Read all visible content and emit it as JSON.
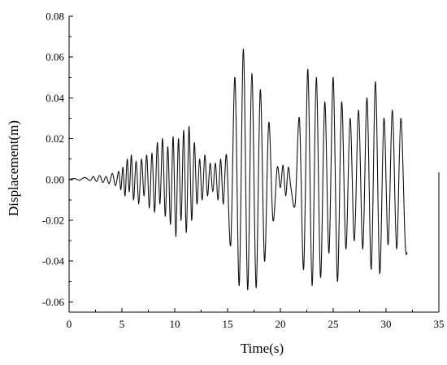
{
  "chart_data": {
    "type": "line",
    "title": "",
    "xlabel": "Time(s)",
    "ylabel": "Displacement(m)",
    "xlim": [
      0,
      35
    ],
    "ylim": [
      -0.065,
      0.08
    ],
    "x_ticks": [
      0,
      5,
      10,
      15,
      20,
      25,
      30,
      35
    ],
    "x_tick_labels": [
      "0",
      "5",
      "10",
      "15",
      "20",
      "25",
      "30",
      "35"
    ],
    "y_ticks": [
      -0.06,
      -0.04,
      -0.02,
      0.0,
      0.02,
      0.04,
      0.06,
      0.08
    ],
    "y_tick_labels": [
      "-0.06",
      "-0.04",
      "-0.02",
      "0.00",
      "0.02",
      "0.04",
      "0.06",
      "0.08"
    ],
    "grid": false,
    "legend": "none",
    "series": [
      {
        "color": "#111111",
        "x": [
          0,
          0.5,
          1.0,
          1.5,
          2.0,
          2.3,
          2.6,
          2.9,
          3.2,
          3.5,
          3.8,
          4.1,
          4.4,
          4.7,
          4.9,
          5.1,
          5.3,
          5.5,
          5.7,
          5.9,
          6.1,
          6.35,
          6.6,
          6.85,
          7.1,
          7.35,
          7.6,
          7.85,
          8.1,
          8.35,
          8.6,
          8.85,
          9.1,
          9.35,
          9.6,
          9.85,
          10.1,
          10.35,
          10.6,
          10.85,
          11.1,
          11.35,
          11.6,
          11.85,
          12.1,
          12.35,
          12.6,
          12.85,
          13.1,
          13.35,
          13.6,
          13.85,
          14.1,
          14.35,
          14.6,
          14.9,
          15.3,
          15.7,
          16.1,
          16.5,
          16.9,
          17.3,
          17.7,
          18.1,
          18.5,
          18.9,
          19.3,
          19.7,
          20.0,
          20.25,
          20.5,
          20.75,
          21.0,
          21.4,
          21.8,
          22.2,
          22.6,
          23.0,
          23.4,
          23.8,
          24.2,
          24.6,
          25.0,
          25.4,
          25.8,
          26.2,
          26.6,
          27.0,
          27.4,
          27.8,
          28.2,
          28.6,
          29.0,
          29.4,
          29.8,
          30.2,
          30.6,
          31.0,
          31.4,
          31.8,
          32.0
        ],
        "y": [
          0,
          0.0005,
          -0.0003,
          0.001,
          -0.0005,
          0.0015,
          -0.001,
          0.002,
          -0.0015,
          0.0015,
          -0.002,
          0.003,
          -0.003,
          0.004,
          -0.005,
          0.006,
          -0.008,
          0.01,
          -0.006,
          0.012,
          -0.01,
          0.009,
          -0.012,
          0.01,
          -0.008,
          0.012,
          -0.014,
          0.013,
          -0.016,
          0.018,
          -0.012,
          0.02,
          -0.018,
          0.016,
          -0.022,
          0.021,
          -0.028,
          0.02,
          -0.02,
          0.024,
          -0.026,
          0.026,
          -0.02,
          0.018,
          -0.012,
          0.01,
          -0.01,
          0.012,
          -0.008,
          0.008,
          -0.006,
          0.008,
          -0.01,
          0.01,
          -0.012,
          0.012,
          -0.032,
          0.05,
          -0.052,
          0.064,
          -0.054,
          0.052,
          -0.053,
          0.044,
          -0.04,
          0.028,
          -0.02,
          0.006,
          -0.004,
          0.007,
          -0.008,
          0.006,
          -0.004,
          -0.012,
          0.03,
          -0.044,
          0.054,
          -0.052,
          0.05,
          -0.048,
          0.038,
          -0.036,
          0.05,
          -0.05,
          0.038,
          -0.034,
          0.03,
          -0.03,
          0.034,
          -0.034,
          0.04,
          -0.044,
          0.048,
          -0.046,
          0.03,
          -0.032,
          0.034,
          -0.034,
          0.03,
          -0.03,
          -0.036
        ]
      }
    ]
  }
}
